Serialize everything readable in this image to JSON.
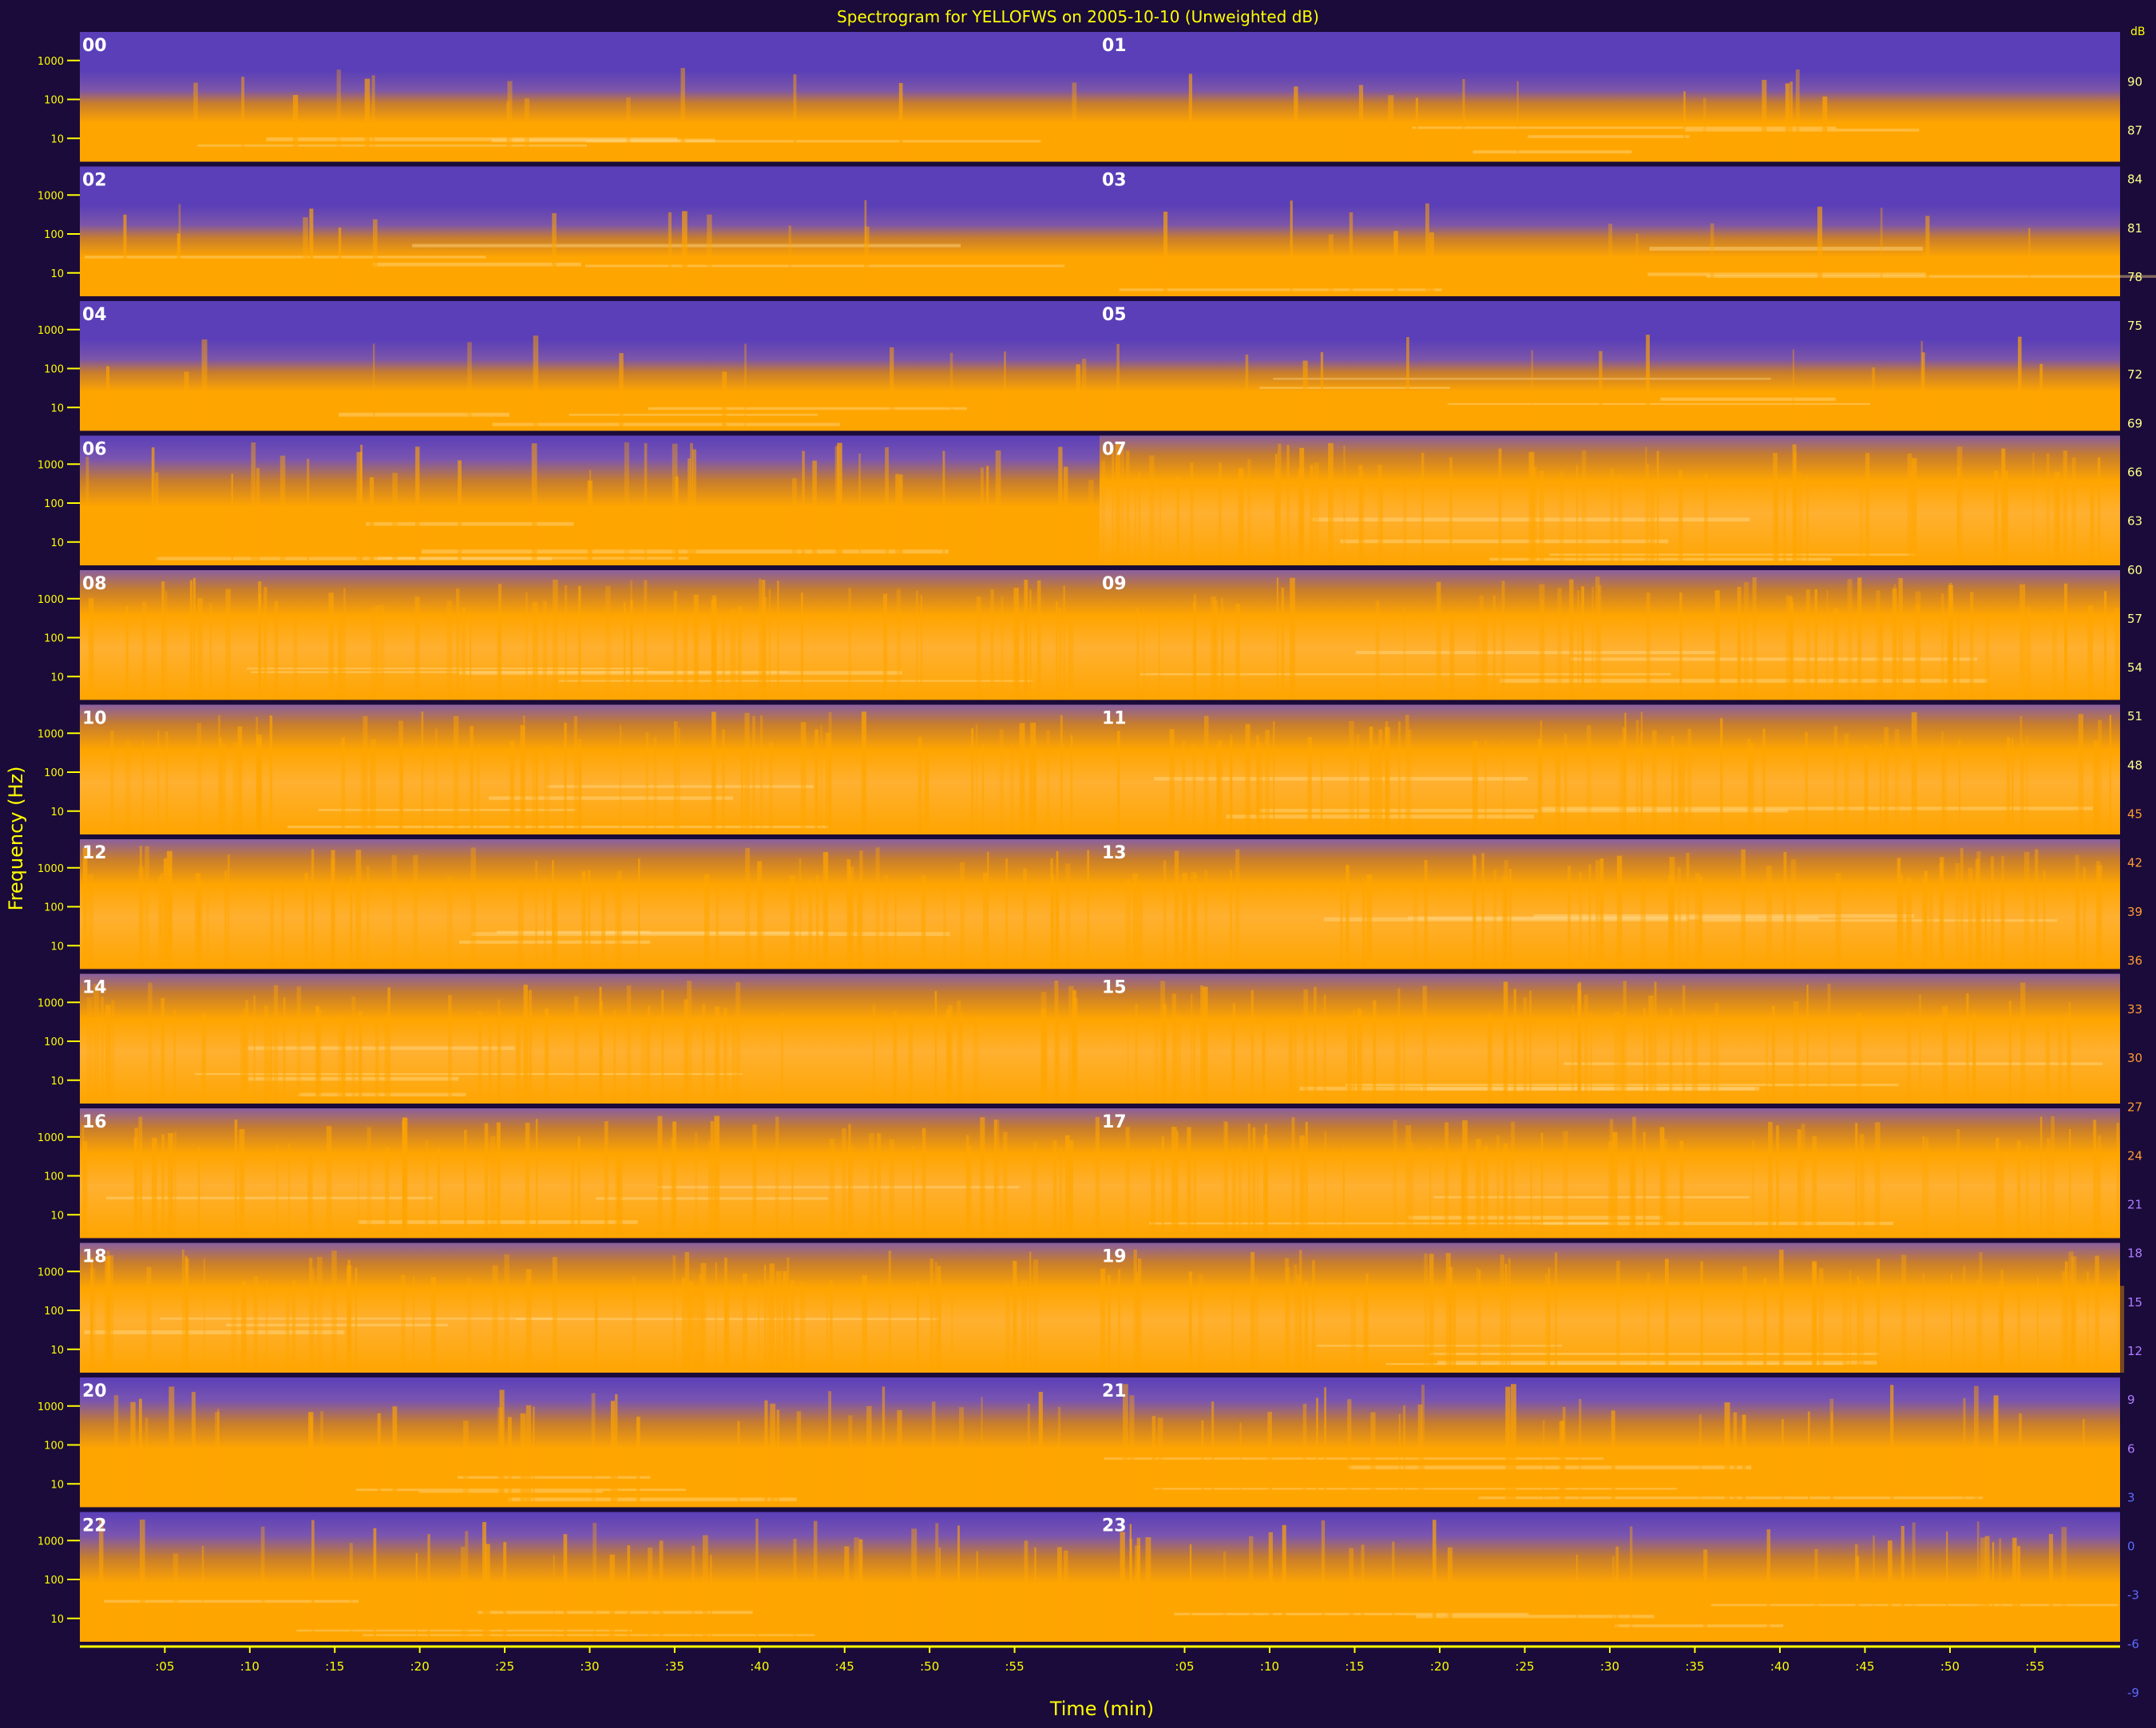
{
  "chart_data": {
    "type": "heatmap",
    "title": "Spectrogram for YELLOFWS on 2005-10-10 (Unweighted dB)",
    "xlabel": "Time (min)",
    "ylabel": "Frequency (Hz)",
    "hour_labels": [
      "00",
      "01",
      "02",
      "03",
      "04",
      "05",
      "06",
      "07",
      "08",
      "09",
      "10",
      "11",
      "12",
      "13",
      "14",
      "15",
      "16",
      "17",
      "18",
      "19",
      "20",
      "21",
      "22",
      "23"
    ],
    "x_ticks": [
      ":05",
      ":10",
      ":15",
      ":20",
      ":25",
      ":30",
      ":35",
      ":40",
      ":45",
      ":50",
      ":55"
    ],
    "freq_ticks": [
      "1000",
      "100",
      "10"
    ],
    "colorbar": {
      "unit": "dB",
      "ticks": [
        90,
        87,
        84,
        81,
        78,
        75,
        72,
        69,
        66,
        63,
        60,
        57,
        54,
        51,
        48,
        45,
        42,
        39,
        36,
        33,
        30,
        27,
        24,
        21,
        18,
        15,
        12,
        9,
        6,
        3,
        0,
        -3,
        -6,
        -9
      ],
      "range": [
        -9,
        91
      ]
    },
    "colors": {
      "background": "#1a0b3a",
      "low": "#5a3fb8",
      "mid": "#c77d2e",
      "high": "#ffa500",
      "peak": "#ffd98a",
      "axis": "#ffff00"
    }
  }
}
